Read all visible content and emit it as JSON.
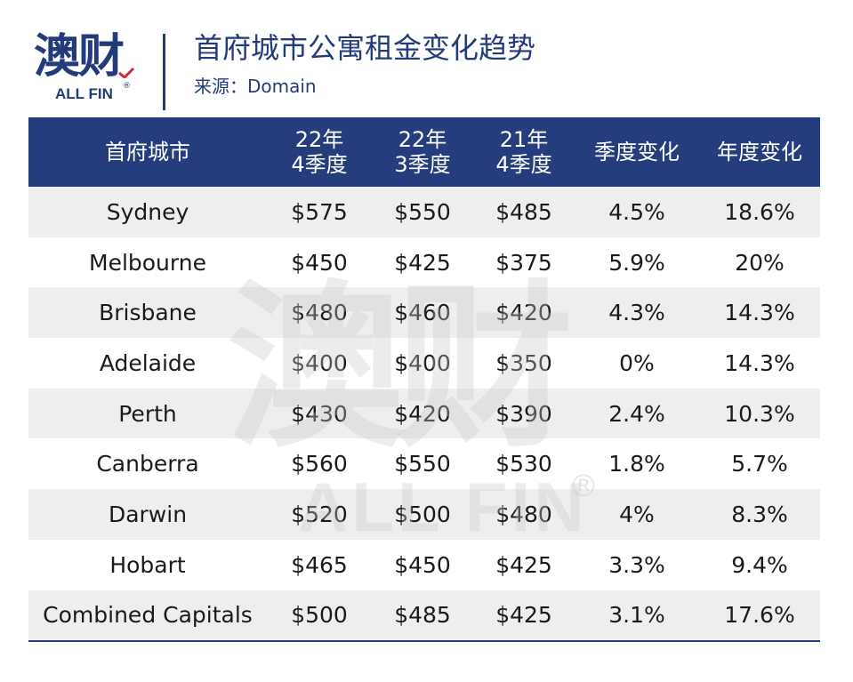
{
  "logo": {
    "cn": "澳财",
    "en": "ALL FIN",
    "reg": "®"
  },
  "header": {
    "title": "首府城市公寓租金变化趋势",
    "source": "来源：Domain"
  },
  "watermark": {
    "cn": "澳财",
    "en": "ALL FIN",
    "reg": "®"
  },
  "table": {
    "headers": [
      [
        "首府城市"
      ],
      [
        "22年",
        "4季度"
      ],
      [
        "22年",
        "3季度"
      ],
      [
        "21年",
        "4季度"
      ],
      [
        "季度变化"
      ],
      [
        "年度变化"
      ]
    ],
    "rows": [
      [
        "Sydney",
        "$575",
        "$550",
        "$485",
        "4.5%",
        "18.6%"
      ],
      [
        "Melbourne",
        "$450",
        "$425",
        "$375",
        "5.9%",
        "20%"
      ],
      [
        "Brisbane",
        "$480",
        "$460",
        "$420",
        "4.3%",
        "14.3%"
      ],
      [
        "Adelaide",
        "$400",
        "$400",
        "$350",
        "0%",
        "14.3%"
      ],
      [
        "Perth",
        "$430",
        "$420",
        "$390",
        "2.4%",
        "10.3%"
      ],
      [
        "Canberra",
        "$560",
        "$550",
        "$530",
        "1.8%",
        "5.7%"
      ],
      [
        "Darwin",
        "$520",
        "$500",
        "$480",
        "4%",
        "8.3%"
      ],
      [
        "Hobart",
        "$465",
        "$450",
        "$425",
        "3.3%",
        "9.4%"
      ],
      [
        "Combined Capitals",
        "$500",
        "$485",
        "$425",
        "3.1%",
        "17.6%"
      ]
    ]
  },
  "colors": {
    "brand_navy": "#253d7c",
    "row_shade": "#eeeeee",
    "accent_red": "#d9263a"
  }
}
